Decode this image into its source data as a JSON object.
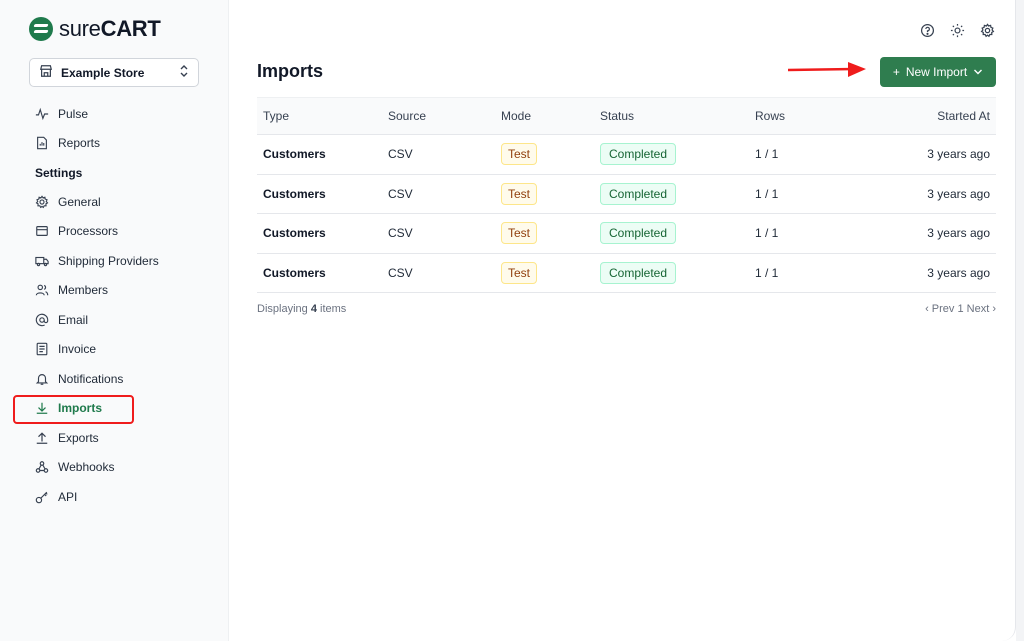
{
  "brand": {
    "logo_text_light": "sure",
    "logo_text_bold": "CART"
  },
  "store_selector": {
    "value": "Example Store"
  },
  "sidebar": {
    "top_items": [
      {
        "label": "Pulse",
        "icon": "pulse-icon"
      },
      {
        "label": "Reports",
        "icon": "report-icon"
      }
    ],
    "section_label": "Settings",
    "items": [
      {
        "label": "General",
        "icon": "gear-icon"
      },
      {
        "label": "Processors",
        "icon": "processor-icon"
      },
      {
        "label": "Shipping Providers",
        "icon": "truck-icon"
      },
      {
        "label": "Members",
        "icon": "users-icon"
      },
      {
        "label": "Email",
        "icon": "at-icon"
      },
      {
        "label": "Invoice",
        "icon": "invoice-icon"
      },
      {
        "label": "Notifications",
        "icon": "bell-icon"
      },
      {
        "label": "Imports",
        "icon": "download-icon",
        "active": true
      },
      {
        "label": "Exports",
        "icon": "upload-icon"
      },
      {
        "label": "Webhooks",
        "icon": "webhook-icon"
      },
      {
        "label": "API",
        "icon": "key-icon"
      }
    ]
  },
  "header": {
    "title": "Imports",
    "new_button_label": "New Import",
    "icons": [
      "help-icon",
      "theme-icon",
      "settings-icon"
    ]
  },
  "colors": {
    "accent": "#2f7d4f",
    "highlight": "#ef1c1c"
  },
  "table": {
    "columns": [
      "Type",
      "Source",
      "Mode",
      "Status",
      "Rows",
      "Started At"
    ],
    "rows": [
      {
        "type": "Customers",
        "source": "CSV",
        "mode": "Test",
        "status": "Completed",
        "rows": "1 / 1",
        "started": "3 years ago"
      },
      {
        "type": "Customers",
        "source": "CSV",
        "mode": "Test",
        "status": "Completed",
        "rows": "1 / 1",
        "started": "3 years ago"
      },
      {
        "type": "Customers",
        "source": "CSV",
        "mode": "Test",
        "status": "Completed",
        "rows": "1 / 1",
        "started": "3 years ago"
      },
      {
        "type": "Customers",
        "source": "CSV",
        "mode": "Test",
        "status": "Completed",
        "rows": "1 / 1",
        "started": "3 years ago"
      }
    ]
  },
  "footer": {
    "displaying_prefix": "Displaying",
    "count": "4",
    "displaying_suffix": "items",
    "prev": "‹ Prev",
    "page": "1",
    "next": "Next ›"
  }
}
